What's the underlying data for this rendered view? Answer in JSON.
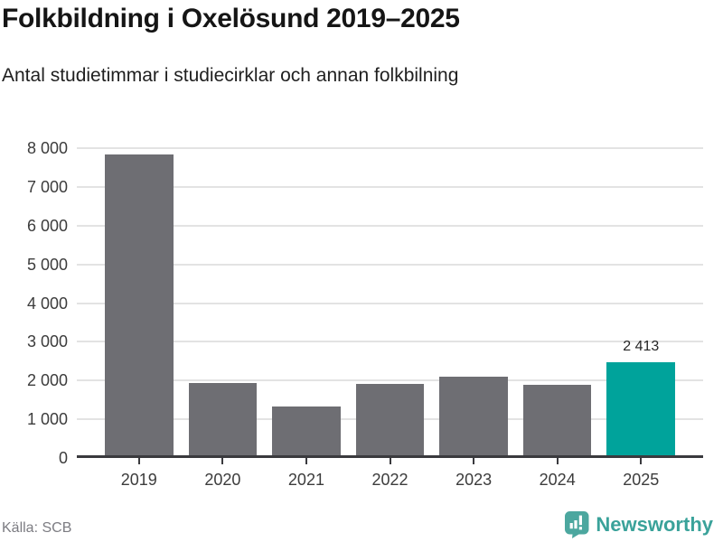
{
  "header": {
    "title": "Folkbildning i Oxelösund 2019–2025",
    "subtitle": "Antal studietimmar i studiecirklar och annan folkbilning"
  },
  "chart_data": {
    "type": "bar",
    "title": "Folkbildning i Oxelösund 2019–2025",
    "subtitle": "Antal studietimmar i studiecirklar och annan folkbilning",
    "categories": [
      "2019",
      "2020",
      "2021",
      "2022",
      "2023",
      "2024",
      "2025"
    ],
    "values": [
      7760,
      1870,
      1270,
      1850,
      2030,
      1830,
      2413
    ],
    "highlight_index": 6,
    "highlighted_value_label": "2 413",
    "y_tick_labels": [
      "0",
      "1 000",
      "2 000",
      "3 000",
      "4 000",
      "5 000",
      "6 000",
      "7 000",
      "8 000"
    ],
    "ylim": [
      0,
      8000
    ],
    "y_tick_step": 1000,
    "grid": true,
    "legend": false,
    "bar_color": "#6e6e73",
    "highlight_color": "#00a39b",
    "grid_color": "#e3e3e3",
    "axis_color": "#3a3a3e"
  },
  "footer": {
    "source": "Källa: SCB",
    "brand": "Newsworthy",
    "brand_color": "#3aa29a",
    "brand_icon_color": "#4ca79f",
    "brand_icon": "newsworthy-speech-bubble-barchart-icon"
  }
}
